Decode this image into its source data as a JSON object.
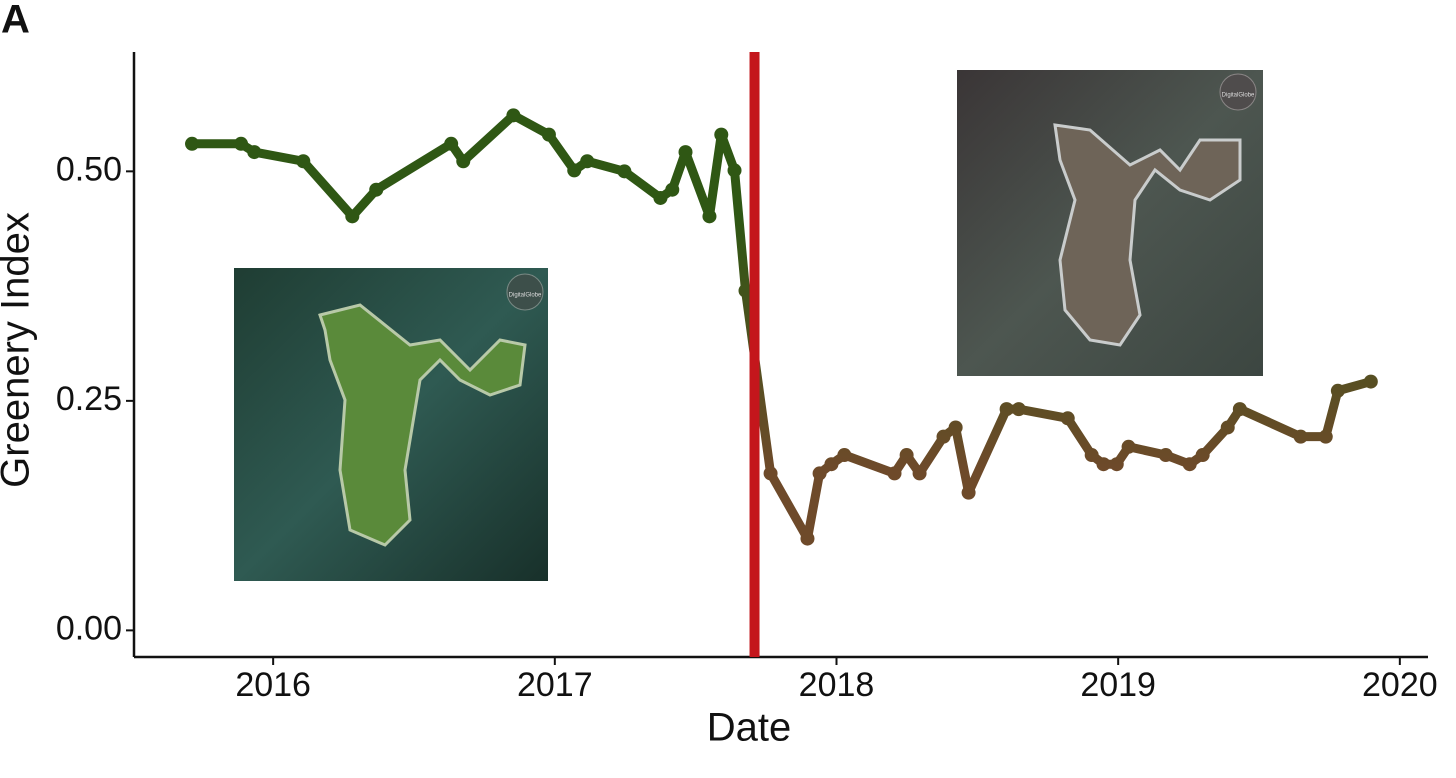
{
  "chart_data": {
    "type": "line",
    "panel_label": "A",
    "x_label": "Date",
    "y_label": "Greenery Index",
    "xlim": [
      2015.506,
      2020.1
    ],
    "ylim": [
      -0.029,
      0.63
    ],
    "xticks": [
      2016,
      2017,
      2018,
      2019,
      2020
    ],
    "yticks": [
      {
        "value": 0,
        "label": "0.00"
      },
      {
        "value": 0.25,
        "label": "0.25"
      },
      {
        "value": 0.5,
        "label": "0.50"
      }
    ],
    "colors": [
      "#2f5714",
      "#6e4a2a"
    ],
    "event_x": 2017.709,
    "event_color": "#c4161c",
    "annotations": [
      "DigitalGlobe",
      "DigitalGlobe"
    ],
    "series": [
      {
        "x": [
          2015.712,
          2015.886,
          2015.933,
          2016.107,
          2016.281,
          2016.366,
          2016.632,
          2016.675,
          2016.853,
          2016.979,
          2017.069,
          2017.115,
          2017.247,
          2017.375,
          2017.417,
          2017.464,
          2017.549,
          2017.591,
          2017.638,
          2017.677,
          2017.766,
          2017.897,
          2017.94,
          2017.982,
          2018.028,
          2018.206,
          2018.249,
          2018.295,
          2018.38,
          2018.423,
          2018.469,
          2018.604,
          2018.647,
          2018.821,
          2018.906,
          2018.948,
          2018.995,
          2019.037,
          2019.169,
          2019.254,
          2019.3,
          2019.389,
          2019.432,
          2019.648,
          2019.737,
          2019.78,
          2019.897
        ],
        "values": [
          0.53,
          0.53,
          0.521,
          0.511,
          0.451,
          0.48,
          0.53,
          0.511,
          0.561,
          0.54,
          0.501,
          0.511,
          0.5,
          0.471,
          0.48,
          0.521,
          0.451,
          0.54,
          0.501,
          0.37,
          0.171,
          0.1,
          0.171,
          0.181,
          0.191,
          0.171,
          0.191,
          0.171,
          0.211,
          0.221,
          0.15,
          0.241,
          0.241,
          0.231,
          0.191,
          0.181,
          0.181,
          0.2,
          0.191,
          0.181,
          0.191,
          0.221,
          0.241,
          0.211,
          0.211,
          0.261,
          0.271
        ]
      }
    ]
  }
}
